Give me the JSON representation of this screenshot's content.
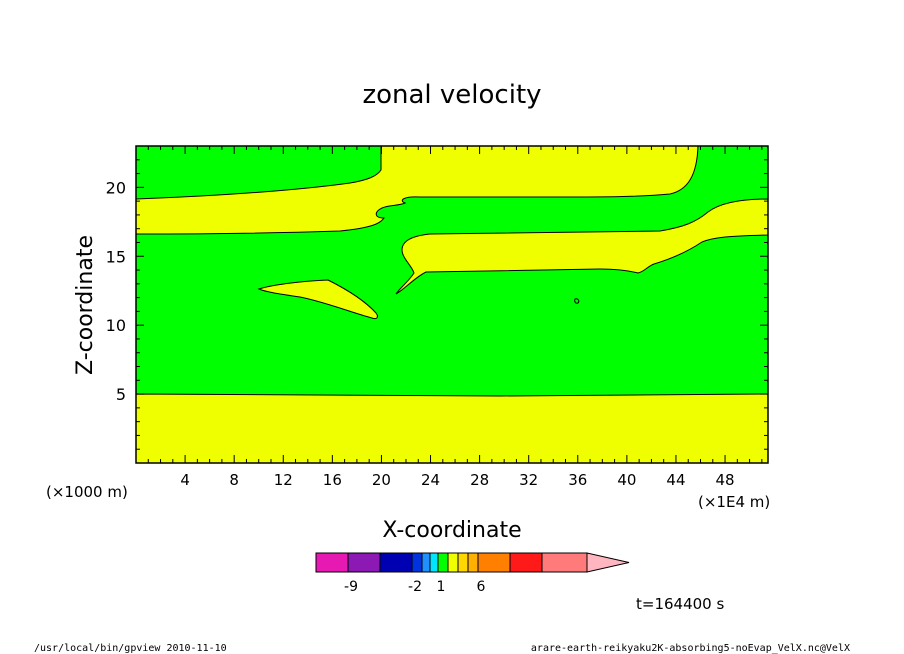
{
  "chart_data": {
    "type": "heatmap",
    "title": "zonal velocity",
    "xlabel": "X-coordinate",
    "ylabel": "Z-coordinate",
    "x_unit_label": "(×1E4 m)",
    "y_unit_label": "(×1000 m)",
    "xlim": [
      0,
      51.5
    ],
    "ylim": [
      0,
      23
    ],
    "x_ticks": [
      4,
      8,
      12,
      16,
      20,
      24,
      28,
      32,
      36,
      40,
      44,
      48
    ],
    "y_ticks": [
      5,
      10,
      15,
      20
    ],
    "time_label": "t=164400 s",
    "colorbar": {
      "colors": [
        "#e619b3",
        "#8c19b3",
        "#0000b3",
        "#0033dd",
        "#1e90ff",
        "#00e6ff",
        "#00ff00",
        "#f0ff00",
        "#ffd700",
        "#ffb000",
        "#ff8000",
        "#ff1a1a",
        "#ff7b7b"
      ],
      "extend_color": "#ffb6c1",
      "tick_labels": [
        "-9",
        "-2",
        "1",
        "6"
      ]
    },
    "regions": [
      {
        "name": "background",
        "color": "#00ff00"
      },
      {
        "name": "yellow-band-bottom",
        "color": "#f0ff00",
        "z_range": [
          0,
          5
        ]
      },
      {
        "name": "yellow-band-middle",
        "color": "#f0ff00"
      },
      {
        "name": "yellow-band-upper",
        "color": "#f0ff00"
      },
      {
        "name": "yellow-band-top",
        "color": "#f0ff00"
      },
      {
        "name": "yellow-lens",
        "color": "#f0ff00"
      }
    ]
  },
  "footer": {
    "left": "/usr/local/bin/gpview  2010-11-10",
    "right": "arare-earth-reikyaku2K-absorbing5-noEvap_VelX.nc@VelX"
  }
}
